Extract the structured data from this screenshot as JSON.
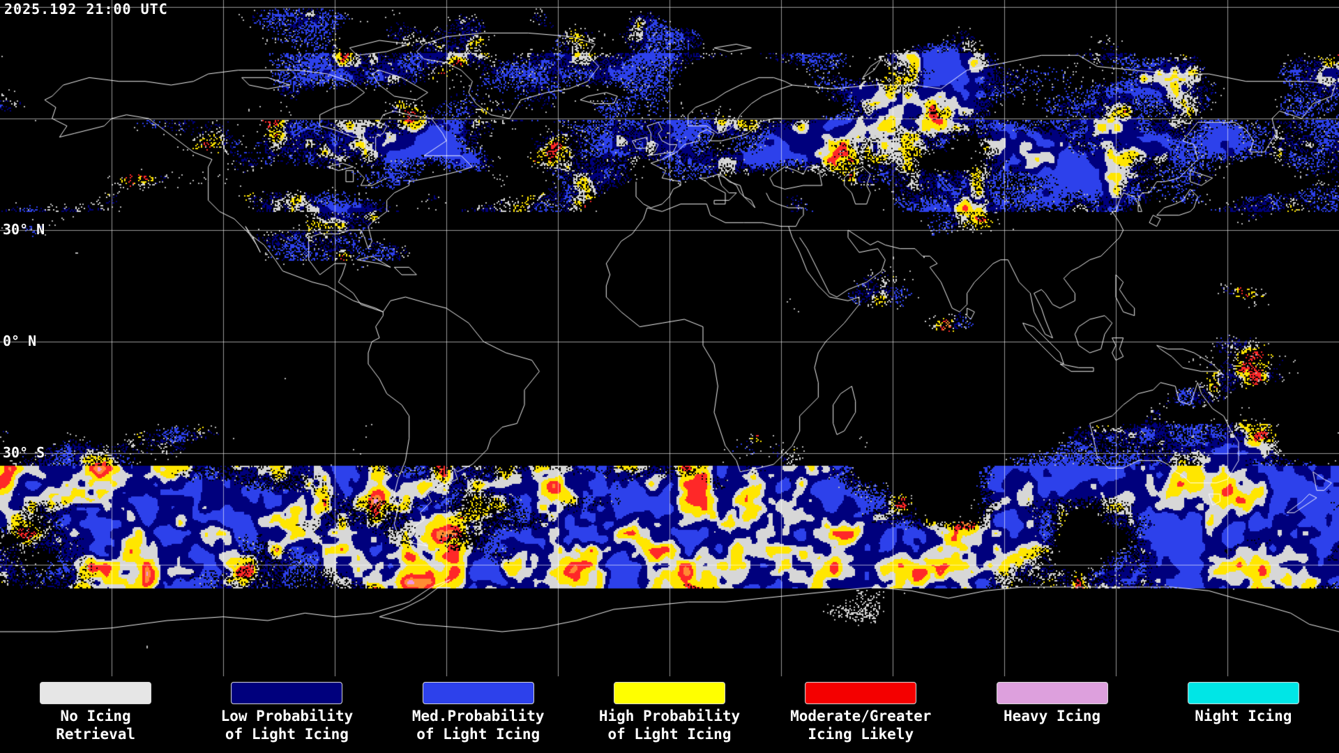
{
  "header": {
    "timestamp": "2025.192 21:00 UTC"
  },
  "map": {
    "background_color": "#000000",
    "gridline_color": "#ffffff",
    "coastline_color": "#ffffff",
    "grid_spacing_deg": 30,
    "lat_labels": [
      {
        "text": "30° N",
        "lat": 30
      },
      {
        "text": "0° N",
        "lat": 0
      },
      {
        "text": "30° S",
        "lat": -30
      }
    ]
  },
  "legend": {
    "items": [
      {
        "id": "no-icing-retrieval",
        "color": "#e6e6e6",
        "line1": "No Icing",
        "line2": "Retrieval"
      },
      {
        "id": "low-prob-light-icing",
        "color": "#00007d",
        "line1": "Low Probability",
        "line2": "of Light Icing"
      },
      {
        "id": "med-prob-light-icing",
        "color": "#2d41eb",
        "line1": "Med.Probability",
        "line2": "of Light Icing"
      },
      {
        "id": "high-prob-light-icing",
        "color": "#ffff00",
        "line1": "High Probability",
        "line2": "of Light Icing"
      },
      {
        "id": "moderate-greater-icing",
        "color": "#f40000",
        "line1": "Moderate/Greater",
        "line2": "Icing Likely"
      },
      {
        "id": "heavy-icing",
        "color": "#dda0dd",
        "line1": "Heavy Icing",
        "line2": ""
      },
      {
        "id": "night-icing",
        "color": "#00e6e6",
        "line1": "Night Icing",
        "line2": ""
      }
    ]
  }
}
